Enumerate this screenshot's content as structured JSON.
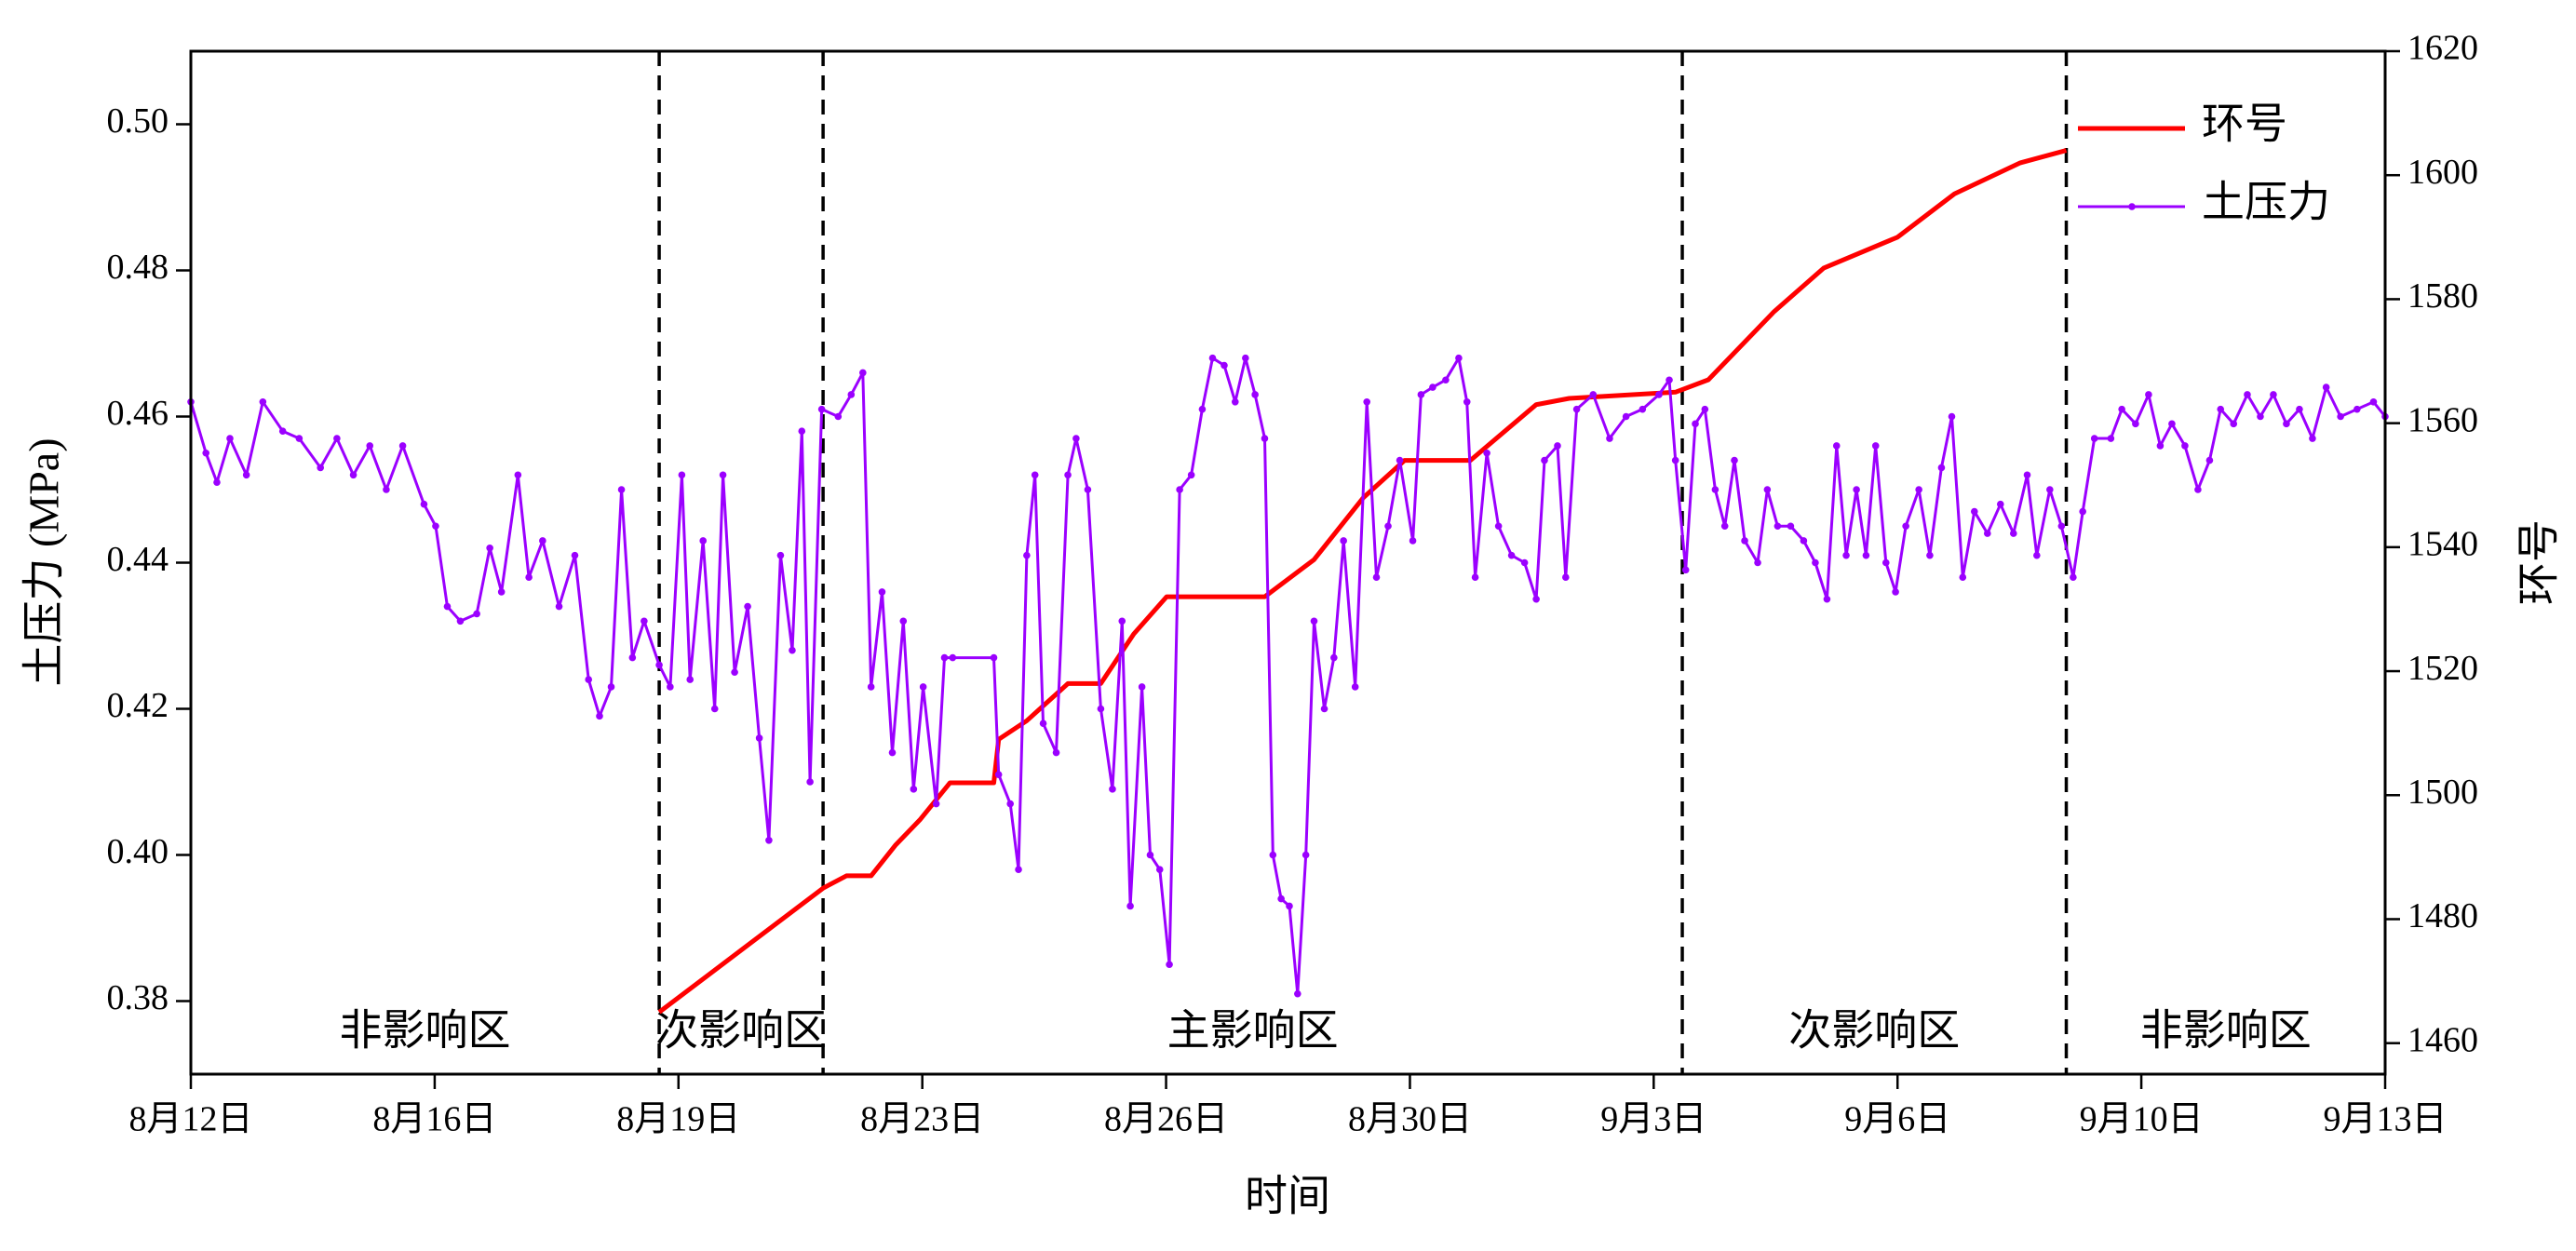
{
  "chart_data": {
    "type": "line",
    "xlabel": "时间",
    "ylabel": "土压力 (MPa)",
    "y2label": "环号",
    "xlim": [
      0,
      32
    ],
    "xticks": [
      {
        "value": 0,
        "label": "8月12日"
      },
      {
        "value": 3.556,
        "label": "8月16日"
      },
      {
        "value": 7.111,
        "label": "8月19日"
      },
      {
        "value": 10.667,
        "label": "8月23日"
      },
      {
        "value": 14.222,
        "label": "8月26日"
      },
      {
        "value": 17.778,
        "label": "8月30日"
      },
      {
        "value": 21.333,
        "label": "9月3日"
      },
      {
        "value": 24.889,
        "label": "9月6日"
      },
      {
        "value": 28.444,
        "label": "9月10日"
      },
      {
        "value": 32,
        "label": "9月13日"
      }
    ],
    "ylim": [
      0.37,
      0.51
    ],
    "yticks": [
      0.38,
      {
        "value": 0.4,
        "label": "0.40"
      },
      0.42,
      0.44,
      0.46,
      0.48,
      {
        "value": 0.5,
        "label": "0.50"
      }
    ],
    "y2lim": [
      1455,
      1620
    ],
    "y2ticks": [
      1460,
      1480,
      1500,
      1520,
      1540,
      1560,
      1580,
      1600,
      1620
    ],
    "vlines": [
      6.83,
      9.22,
      21.75,
      27.35
    ],
    "annotations": [
      "非影响区",
      "次影响区",
      "主影响区",
      "次影响区",
      "非影响区"
    ],
    "legend": "upper right",
    "series": [
      {
        "name": "环号",
        "color": "#ff0000",
        "axis": "y2",
        "marker": false,
        "x": [
          6.83,
          9.22,
          9.56,
          9.92,
          10.28,
          10.63,
          11.07,
          11.71,
          11.78,
          12.19,
          12.79,
          13.27,
          13.75,
          14.23,
          14.71,
          15.66,
          16.38,
          17.1,
          17.7,
          18.66,
          19.62,
          20.1,
          21.65,
          22.13,
          23.09,
          23.81,
          24.89,
          25.72,
          26.68,
          27.35
        ],
        "values": [
          1465,
          1485,
          1487,
          1487,
          1492,
          1496,
          1502,
          1502,
          1509,
          1512,
          1518,
          1518,
          1526,
          1532,
          1532,
          1532,
          1538,
          1548,
          1554,
          1554,
          1563,
          1564,
          1565,
          1567,
          1578,
          1585,
          1590,
          1597,
          1602,
          1604
        ]
      },
      {
        "name": "土压力",
        "color": "#9b00ff",
        "axis": "y",
        "marker": true,
        "x": [
          0,
          0.22,
          0.38,
          0.57,
          0.81,
          1.05,
          1.34,
          1.58,
          1.89,
          2.13,
          2.37,
          2.61,
          2.85,
          3.09,
          3.4,
          3.57,
          3.74,
          3.93,
          4.17,
          4.36,
          4.53,
          4.77,
          4.93,
          5.13,
          5.37,
          5.6,
          5.8,
          5.96,
          6.13,
          6.28,
          6.44,
          6.61,
          6.83,
          6.99,
          7.16,
          7.28,
          7.47,
          7.64,
          7.76,
          7.93,
          8.12,
          8.29,
          8.43,
          8.6,
          8.77,
          8.91,
          9.03,
          9.2,
          9.44,
          9.63,
          9.8,
          9.92,
          10.08,
          10.23,
          10.39,
          10.54,
          10.68,
          10.87,
          10.99,
          11.11,
          11.71,
          11.78,
          11.95,
          12.07,
          12.19,
          12.31,
          12.43,
          12.62,
          12.79,
          12.91,
          13.08,
          13.27,
          13.44,
          13.58,
          13.7,
          13.87,
          13.99,
          14.13,
          14.27,
          14.42,
          14.59,
          14.75,
          14.9,
          15.07,
          15.23,
          15.38,
          15.52,
          15.66,
          15.78,
          15.9,
          16.02,
          16.14,
          16.26,
          16.38,
          16.53,
          16.67,
          16.81,
          16.98,
          17.15,
          17.29,
          17.46,
          17.63,
          17.82,
          17.94,
          18.11,
          18.3,
          18.49,
          18.61,
          18.73,
          18.9,
          19.07,
          19.26,
          19.45,
          19.62,
          19.74,
          19.93,
          20.05,
          20.21,
          20.45,
          20.69,
          20.93,
          21.17,
          21.41,
          21.56,
          21.65,
          21.8,
          21.94,
          22.08,
          22.23,
          22.37,
          22.51,
          22.66,
          22.85,
          22.99,
          23.14,
          23.33,
          23.52,
          23.69,
          23.86,
          24.0,
          24.14,
          24.29,
          24.43,
          24.57,
          24.72,
          24.86,
          25.01,
          25.2,
          25.36,
          25.53,
          25.68,
          25.84,
          26.01,
          26.2,
          26.39,
          26.58,
          26.78,
          26.92,
          27.11,
          27.28,
          27.45,
          27.59,
          27.76,
          28.0,
          28.16,
          28.36,
          28.55,
          28.72,
          28.89,
          29.08,
          29.27,
          29.44,
          29.6,
          29.79,
          29.99,
          30.18,
          30.37,
          30.56,
          30.75,
          30.94,
          31.14,
          31.35,
          31.59,
          31.83,
          32.0
        ],
        "values": [
          0.462,
          0.455,
          0.451,
          0.457,
          0.452,
          0.462,
          0.458,
          0.457,
          0.453,
          0.457,
          0.452,
          0.456,
          0.45,
          0.456,
          0.448,
          0.445,
          0.434,
          0.432,
          0.433,
          0.442,
          0.436,
          0.452,
          0.438,
          0.443,
          0.434,
          0.441,
          0.424,
          0.419,
          0.423,
          0.45,
          0.427,
          0.432,
          0.426,
          0.423,
          0.452,
          0.424,
          0.443,
          0.42,
          0.452,
          0.425,
          0.434,
          0.416,
          0.402,
          0.441,
          0.428,
          0.458,
          0.41,
          0.461,
          0.46,
          0.463,
          0.466,
          0.423,
          0.436,
          0.414,
          0.432,
          0.409,
          0.423,
          0.407,
          0.427,
          0.427,
          0.427,
          0.411,
          0.407,
          0.398,
          0.441,
          0.452,
          0.418,
          0.414,
          0.452,
          0.457,
          0.45,
          0.42,
          0.409,
          0.432,
          0.393,
          0.423,
          0.4,
          0.398,
          0.385,
          0.45,
          0.452,
          0.461,
          0.468,
          0.467,
          0.462,
          0.468,
          0.463,
          0.457,
          0.4,
          0.394,
          0.393,
          0.381,
          0.4,
          0.432,
          0.42,
          0.427,
          0.443,
          0.423,
          0.462,
          0.438,
          0.445,
          0.454,
          0.443,
          0.463,
          0.464,
          0.465,
          0.468,
          0.462,
          0.438,
          0.455,
          0.445,
          0.441,
          0.44,
          0.435,
          0.454,
          0.456,
          0.438,
          0.461,
          0.463,
          0.457,
          0.46,
          0.461,
          0.463,
          0.465,
          0.454,
          0.439,
          0.459,
          0.461,
          0.45,
          0.445,
          0.454,
          0.443,
          0.44,
          0.45,
          0.445,
          0.445,
          0.443,
          0.44,
          0.435,
          0.456,
          0.441,
          0.45,
          0.441,
          0.456,
          0.44,
          0.436,
          0.445,
          0.45,
          0.441,
          0.453,
          0.46,
          0.438,
          0.447,
          0.444,
          0.448,
          0.444,
          0.452,
          0.441,
          0.45,
          0.445,
          0.438,
          0.447,
          0.457,
          0.457,
          0.461,
          0.459,
          0.463,
          0.456,
          0.459,
          0.456,
          0.45,
          0.454,
          0.461,
          0.459,
          0.463,
          0.46,
          0.463,
          0.459,
          0.461,
          0.457,
          0.464,
          0.46,
          0.461,
          0.462,
          0.46
        ]
      }
    ]
  }
}
